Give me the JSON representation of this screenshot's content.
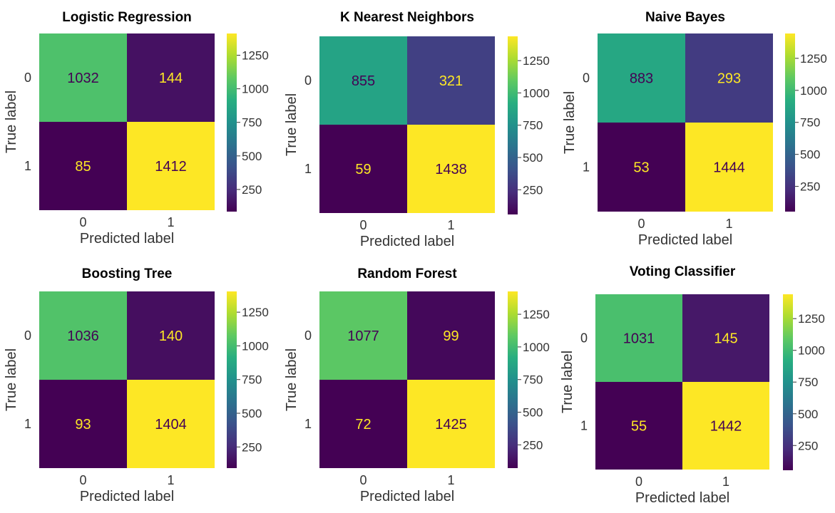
{
  "chart_data": [
    {
      "type": "heatmap",
      "title": "Logistic Regression",
      "xlabel": "Predicted label",
      "ylabel": "True label",
      "x_categories": [
        "0",
        "1"
      ],
      "y_categories": [
        "0",
        "1"
      ],
      "matrix": [
        [
          1032,
          144
        ],
        [
          85,
          1412
        ]
      ],
      "colormap": "viridis",
      "colorbar_ticks": [
        "250",
        "500",
        "750",
        "1000",
        "1250"
      ],
      "colorbar_range": [
        85,
        1412
      ]
    },
    {
      "type": "heatmap",
      "title": "K Nearest Neighbors",
      "xlabel": "Predicted label",
      "ylabel": "True label",
      "x_categories": [
        "0",
        "1"
      ],
      "y_categories": [
        "0",
        "1"
      ],
      "matrix": [
        [
          855,
          321
        ],
        [
          59,
          1438
        ]
      ],
      "colormap": "viridis",
      "colorbar_ticks": [
        "250",
        "500",
        "750",
        "1000",
        "1250"
      ],
      "colorbar_range": [
        59,
        1438
      ]
    },
    {
      "type": "heatmap",
      "title": "Naive Bayes",
      "xlabel": "Predicted label",
      "ylabel": "True label",
      "x_categories": [
        "0",
        "1"
      ],
      "y_categories": [
        "0",
        "1"
      ],
      "matrix": [
        [
          883,
          293
        ],
        [
          53,
          1444
        ]
      ],
      "colormap": "viridis",
      "colorbar_ticks": [
        "250",
        "500",
        "750",
        "1000",
        "1250"
      ],
      "colorbar_range": [
        53,
        1444
      ]
    },
    {
      "type": "heatmap",
      "title": "Boosting Tree",
      "xlabel": "Predicted label",
      "ylabel": "True label",
      "x_categories": [
        "0",
        "1"
      ],
      "y_categories": [
        "0",
        "1"
      ],
      "matrix": [
        [
          1036,
          140
        ],
        [
          93,
          1404
        ]
      ],
      "colormap": "viridis",
      "colorbar_ticks": [
        "250",
        "500",
        "750",
        "1000",
        "1250"
      ],
      "colorbar_range": [
        93,
        1404
      ]
    },
    {
      "type": "heatmap",
      "title": "Random Forest",
      "xlabel": "Predicted label",
      "ylabel": "True label",
      "x_categories": [
        "0",
        "1"
      ],
      "y_categories": [
        "0",
        "1"
      ],
      "matrix": [
        [
          1077,
          99
        ],
        [
          72,
          1425
        ]
      ],
      "colormap": "viridis",
      "colorbar_ticks": [
        "250",
        "500",
        "750",
        "1000",
        "1250"
      ],
      "colorbar_range": [
        72,
        1425
      ]
    },
    {
      "type": "heatmap",
      "title": "Voting Classifier",
      "xlabel": "Predicted label",
      "ylabel": "True label",
      "x_categories": [
        "0",
        "1"
      ],
      "y_categories": [
        "0",
        "1"
      ],
      "matrix": [
        [
          1031,
          145
        ],
        [
          55,
          1442
        ]
      ],
      "colormap": "viridis",
      "colorbar_ticks": [
        "250",
        "500",
        "750",
        "1000",
        "1250"
      ],
      "colorbar_range": [
        55,
        1442
      ]
    }
  ]
}
